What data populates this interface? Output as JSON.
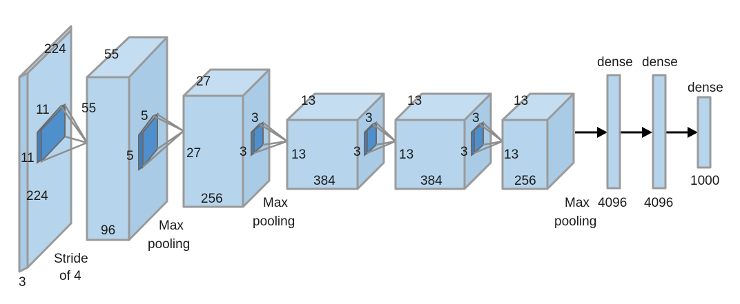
{
  "blocks": [
    {
      "id": "input",
      "width_label": "224",
      "height_label": "224",
      "depth_label": "3",
      "kernel_labels": [
        "11",
        "11"
      ],
      "note_lines": [
        "Stride",
        "of 4"
      ]
    },
    {
      "id": "conv1",
      "width_label": "55",
      "height_label": "55",
      "depth_label": "96",
      "kernel_labels": [
        "5",
        "5"
      ],
      "note_lines": [
        "Max",
        "pooling"
      ]
    },
    {
      "id": "conv2",
      "width_label": "27",
      "height_label": "27",
      "depth_label": "256",
      "kernel_labels": [
        "3",
        "3"
      ],
      "note_lines": [
        "Max",
        "pooling"
      ]
    },
    {
      "id": "conv3",
      "width_label": "13",
      "height_label": "13",
      "depth_label": "384",
      "kernel_labels": [
        "3",
        "3"
      ]
    },
    {
      "id": "conv4",
      "width_label": "13",
      "height_label": "13",
      "depth_label": "384",
      "kernel_labels": [
        "3",
        "3"
      ]
    },
    {
      "id": "conv5",
      "width_label": "13",
      "height_label": "13",
      "depth_label": "256",
      "note_lines": [
        "Max",
        "pooling"
      ]
    }
  ],
  "dense_layers": [
    {
      "title": "dense",
      "size": "4096"
    },
    {
      "title": "dense",
      "size": "4096"
    },
    {
      "title": "dense",
      "size": "1000"
    }
  ]
}
